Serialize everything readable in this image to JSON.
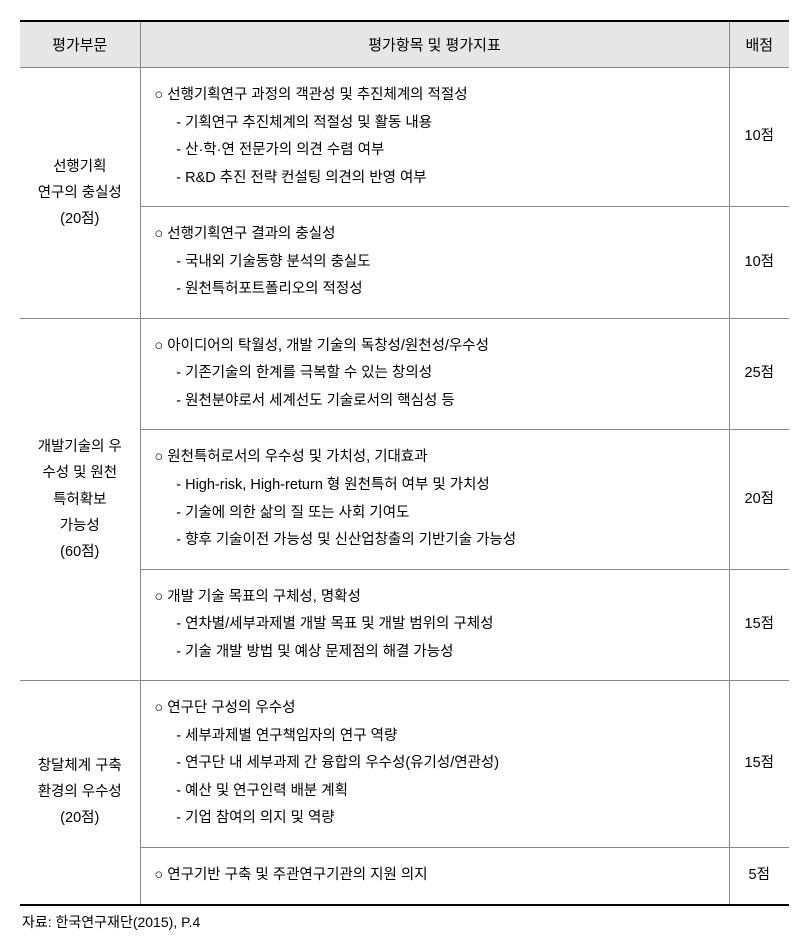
{
  "headers": {
    "col1": "평가부문",
    "col2": "평가항목 및 평가지표",
    "col3": "배점"
  },
  "sections": [
    {
      "category_lines": [
        "선행기획",
        "연구의 충실성",
        "(20점)"
      ],
      "rows": [
        {
          "title": "○ 선행기획연구 과정의 객관성 및 추진체계의 적절성",
          "subs": [
            "- 기획연구 추진체계의 적절성 및 활동 내용",
            "- 산·학·연 전문가의 의견 수렴 여부",
            "- R&D 추진 전략 컨설팅 의견의 반영 여부"
          ],
          "score": "10점"
        },
        {
          "title": "○ 선행기획연구 결과의 충실성",
          "subs": [
            "- 국내외 기술동향 분석의 충실도",
            "- 원천특허포트폴리오의 적정성"
          ],
          "score": "10점"
        }
      ]
    },
    {
      "category_lines": [
        "개발기술의 우",
        "수성 및 원천",
        "특허확보",
        "가능성",
        "(60점)"
      ],
      "rows": [
        {
          "title": "○ 아이디어의 탁월성, 개발 기술의 독창성/원천성/우수성",
          "subs": [
            "- 기존기술의 한계를 극복할 수 있는 창의성",
            "- 원천분야로서 세계선도 기술로서의 핵심성 등"
          ],
          "score": "25점"
        },
        {
          "title": "○ 원천특허로서의 우수성 및 가치성, 기대효과",
          "subs": [
            "- High-risk, High-return 형 원천특허 여부 및 가치성",
            "- 기술에 의한 삶의 질 또는 사회 기여도",
            "- 향후 기술이전 가능성 및 신산업창출의 기반기술 가능성"
          ],
          "score": "20점"
        },
        {
          "title": "○ 개발 기술 목표의 구체성, 명확성",
          "subs": [
            "- 연차별/세부과제별 개발 목표 및 개발 범위의 구체성",
            "- 기술 개발 방법 및 예상 문제점의 해결 가능성"
          ],
          "score": "15점"
        }
      ]
    },
    {
      "category_lines": [
        "창달체계 구축",
        "환경의 우수성",
        "(20점)"
      ],
      "rows": [
        {
          "title": "○ 연구단 구성의 우수성",
          "subs": [
            "- 세부과제별 연구책임자의 연구 역량",
            "- 연구단 내 세부과제 간 융합의 우수성(유기성/연관성)",
            "- 예산 및 연구인력 배분 계획",
            "- 기업 참여의 의지 및 역량"
          ],
          "score": "15점"
        },
        {
          "title": "○ 연구기반 구축 및 주관연구기관의 지원 의지",
          "subs": [],
          "score": "5점"
        }
      ]
    }
  ],
  "source": "자료:  한국연구재단(2015), P.4",
  "styles": {
    "header_bg": "#e6e6e6",
    "border_color": "#888888",
    "outer_border_color": "#000000",
    "text_color": "#000000",
    "font_size_header": 15,
    "font_size_body": 14.5,
    "font_size_source": 14,
    "col_widths": {
      "col1": 120,
      "col2": "auto",
      "col3": 60
    }
  }
}
